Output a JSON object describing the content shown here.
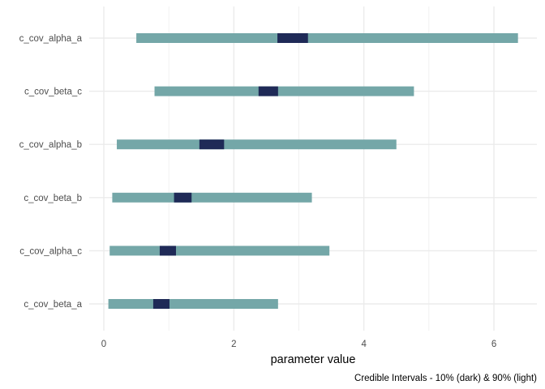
{
  "chart_data": {
    "type": "interval",
    "xlabel": "parameter value",
    "caption": "Credible Intervals - 10% (dark) & 90% (light)",
    "xlim": [
      -0.2,
      6.65
    ],
    "x_ticks": [
      0,
      2,
      4,
      6
    ],
    "x_tick_labels": [
      "0",
      "2",
      "4",
      "6"
    ],
    "grid": true,
    "colors": {
      "outer": "#74a7a8",
      "inner": "#1f2a57",
      "grid": "#ebebeb"
    },
    "parameters": [
      {
        "label": "c_cov_alpha_a",
        "outer": [
          0.5,
          6.37
        ],
        "inner": [
          2.67,
          3.14
        ]
      },
      {
        "label": "c_cov_beta_c",
        "outer": [
          0.78,
          4.77
        ],
        "inner": [
          2.38,
          2.68
        ]
      },
      {
        "label": "c_cov_alpha_b",
        "outer": [
          0.2,
          4.5
        ],
        "inner": [
          1.47,
          1.85
        ]
      },
      {
        "label": "c_cov_beta_b",
        "outer": [
          0.13,
          3.2
        ],
        "inner": [
          1.08,
          1.35
        ]
      },
      {
        "label": "c_cov_alpha_c",
        "outer": [
          0.09,
          3.47
        ],
        "inner": [
          0.86,
          1.11
        ]
      },
      {
        "label": "c_cov_beta_a",
        "outer": [
          0.07,
          2.68
        ],
        "inner": [
          0.76,
          1.01
        ]
      }
    ]
  }
}
